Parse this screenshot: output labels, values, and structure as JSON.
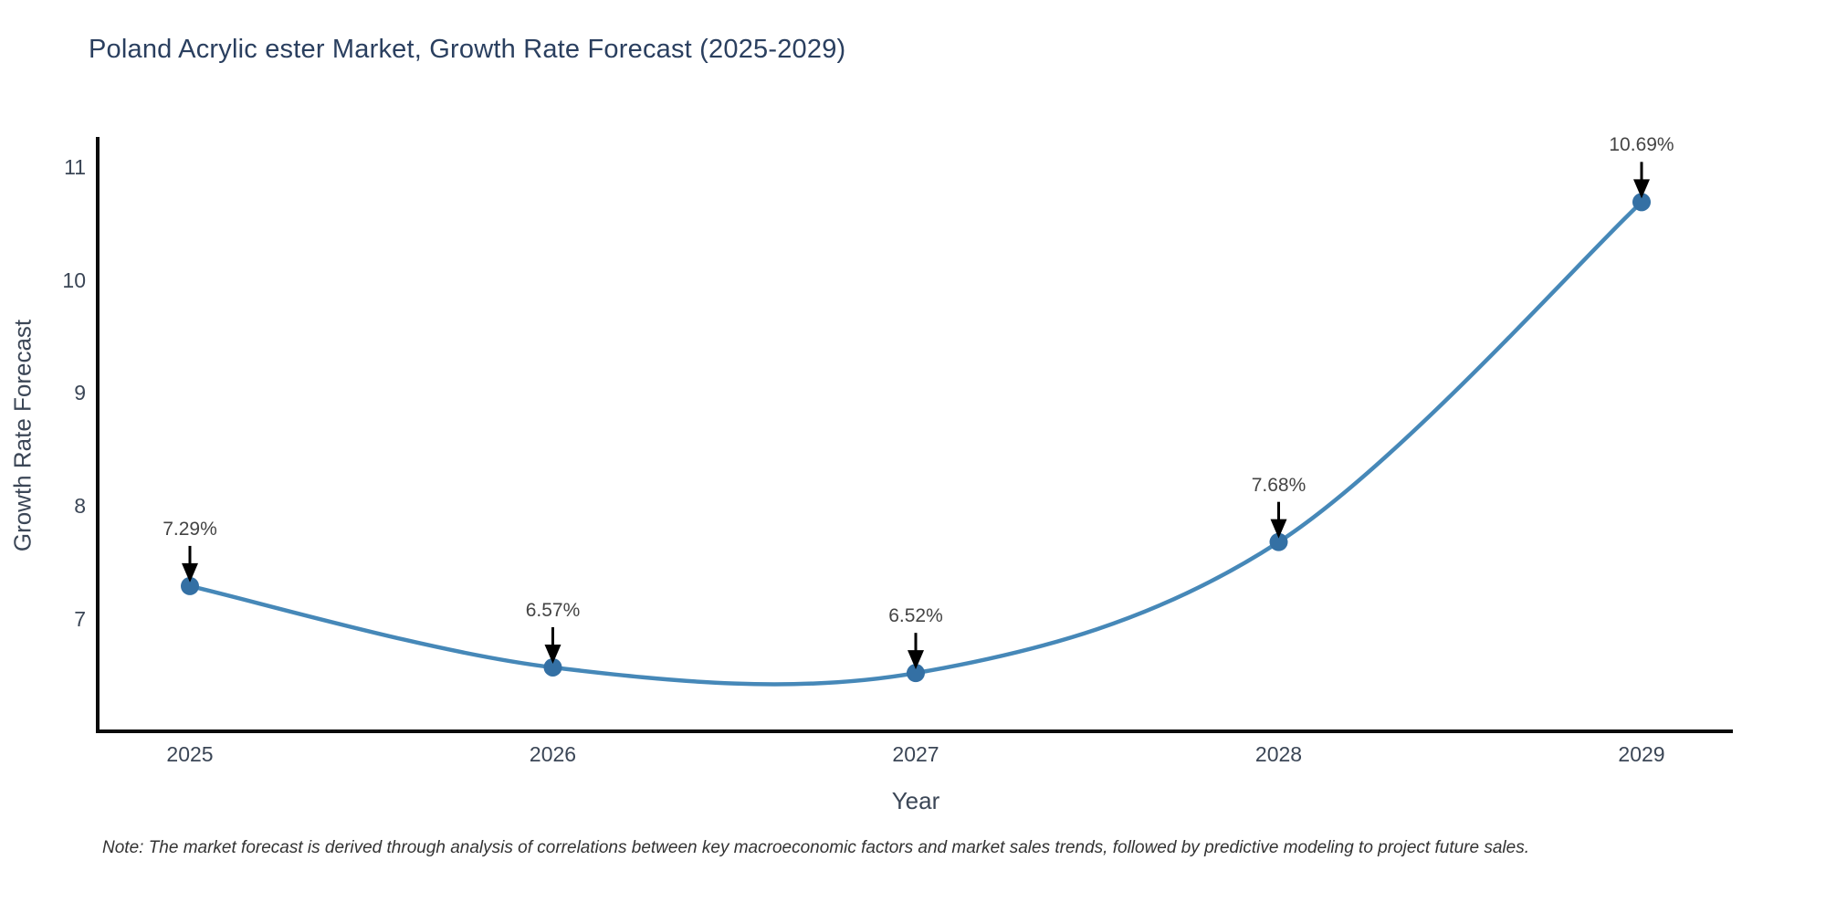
{
  "title": "Poland Acrylic ester Market, Growth Rate Forecast (2025-2029)",
  "note": "Note: The market forecast is derived through analysis of correlations between key macroeconomic factors and market sales trends, followed by predictive modeling to project future sales.",
  "chart_data": {
    "type": "line",
    "title": "Poland Acrylic ester Market, Growth Rate Forecast (2025-2029)",
    "categories": [
      "2025",
      "2026",
      "2027",
      "2028",
      "2029"
    ],
    "x": [
      2025,
      2026,
      2027,
      2028,
      2029
    ],
    "values": [
      7.29,
      6.57,
      6.52,
      7.68,
      10.69
    ],
    "point_labels": [
      "7.29%",
      "6.57%",
      "6.52%",
      "7.68%",
      "10.69%"
    ],
    "xlabel": "Year",
    "ylabel": "Growth Rate Forecast",
    "yticks": [
      7,
      8,
      9,
      10,
      11
    ],
    "ylim": [
      6.0,
      11.27
    ],
    "line_shape": "spline",
    "markers": true,
    "grid": false,
    "legend": "none",
    "annotation_style": "value label above point with downward black arrow",
    "colors": {
      "line": "#4688b8",
      "marker": "#3470a4",
      "arrow": "#000000",
      "axis": "#0a0a0a",
      "title_text": "#2a3f5f",
      "tick_text": "#3b4656",
      "annotation_text": "#444444",
      "note_text": "#333333",
      "background": "#ffffff"
    }
  }
}
